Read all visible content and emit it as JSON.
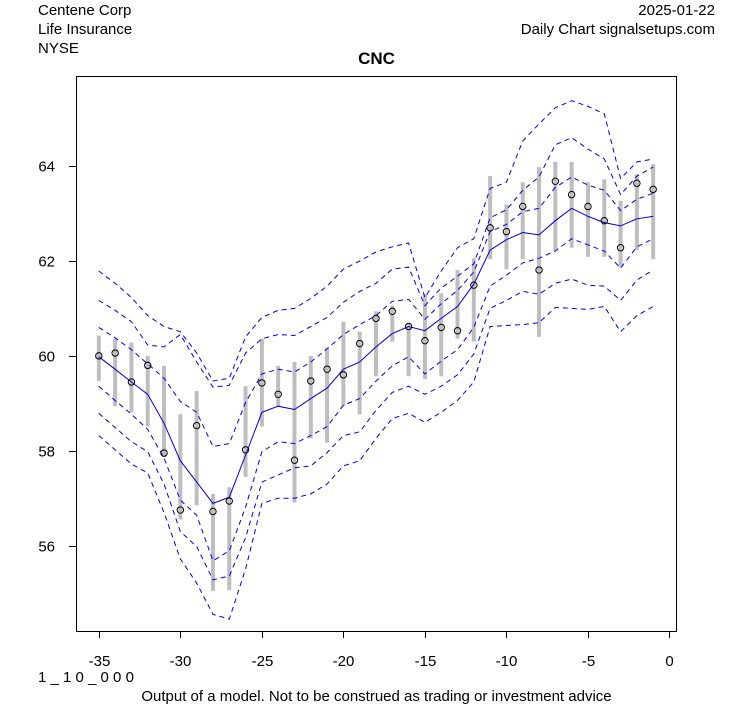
{
  "header": {
    "company": "Centene Corp",
    "industry": "Life Insurance",
    "exchange": "NYSE",
    "date": "2025-01-22",
    "source": "Daily Chart signalsetups.com"
  },
  "footer": {
    "code": "1 _ 1 0 _ 0 0 0",
    "disclaimer": "Output of a model. Not to be construed as trading or investment advice"
  },
  "colors": {
    "band": "#0000ee",
    "center": "#0000cc",
    "bar": "#bebebe",
    "point": "#000000"
  },
  "chart_data": {
    "type": "line",
    "title": "CNC",
    "xlabel": "",
    "ylabel": "",
    "xlim": [
      -36.4,
      0.4
    ],
    "ylim": [
      54.2,
      65.9
    ],
    "x_ticks": [
      -35,
      -30,
      -25,
      -20,
      -15,
      -10,
      -5,
      0
    ],
    "y_ticks": [
      56,
      58,
      60,
      62,
      64
    ],
    "x": [
      -35,
      -34,
      -33,
      -32,
      -31,
      -30,
      -29,
      -28,
      -27,
      -26,
      -25,
      -24,
      -23,
      -22,
      -21,
      -20,
      -19,
      -18,
      -17,
      -16,
      -15,
      -14,
      -13,
      -12,
      -11,
      -10,
      -9,
      -8,
      -7,
      -6,
      -5,
      -4,
      -3,
      -2,
      -1
    ],
    "close": [
      60.0,
      60.06,
      59.45,
      59.8,
      57.95,
      56.75,
      58.53,
      56.72,
      56.94,
      58.02,
      59.43,
      59.19,
      57.8,
      59.47,
      59.72,
      59.6,
      60.26,
      60.79,
      60.94,
      60.62,
      60.32,
      60.6,
      60.53,
      61.49,
      62.7,
      62.62,
      63.15,
      61.81,
      63.68,
      63.4,
      63.15,
      62.85,
      62.28,
      63.64,
      63.51
    ],
    "range_high": [
      60.43,
      60.36,
      60.28,
      60.0,
      59.79,
      58.77,
      59.26,
      57.09,
      57.23,
      59.36,
      60.36,
      59.79,
      59.87,
      60.0,
      60.17,
      60.72,
      60.51,
      60.94,
      61.06,
      60.68,
      61.3,
      61.32,
      61.81,
      62.06,
      63.79,
      63.19,
      63.66,
      63.98,
      64.09,
      64.09,
      63.66,
      63.72,
      63.27,
      63.83,
      64.04
    ],
    "range_low": [
      59.47,
      58.94,
      58.81,
      58.51,
      57.87,
      56.55,
      56.85,
      55.04,
      55.06,
      57.45,
      58.51,
      58.94,
      56.91,
      58.26,
      58.17,
      58.94,
      58.77,
      59.57,
      60.3,
      59.57,
      59.51,
      59.57,
      60.36,
      60.3,
      62.04,
      61.83,
      62.04,
      60.4,
      62.21,
      62.28,
      62.09,
      62.09,
      61.87,
      62.23,
      62.04
    ],
    "center": [
      59.98,
      59.72,
      59.45,
      59.19,
      58.58,
      57.79,
      57.34,
      56.89,
      57.02,
      57.91,
      58.81,
      58.94,
      58.87,
      59.1,
      59.32,
      59.72,
      59.87,
      60.19,
      60.47,
      60.62,
      60.53,
      60.79,
      61.04,
      61.51,
      62.23,
      62.45,
      62.6,
      62.55,
      62.85,
      63.11,
      62.94,
      62.81,
      62.74,
      62.89,
      62.94
    ],
    "bands": [
      {
        "name": "upper3",
        "values": [
          61.79,
          61.53,
          61.23,
          60.85,
          60.62,
          60.51,
          60.06,
          59.47,
          59.53,
          60.4,
          60.81,
          60.96,
          61.0,
          61.21,
          61.47,
          61.83,
          62.0,
          62.19,
          62.3,
          62.38,
          61.23,
          61.79,
          62.28,
          62.47,
          63.53,
          63.66,
          64.53,
          64.89,
          65.23,
          65.38,
          65.26,
          65.1,
          63.74,
          64.09,
          64.15
        ]
      },
      {
        "name": "upper2",
        "values": [
          61.17,
          60.96,
          60.72,
          60.23,
          60.19,
          60.45,
          59.87,
          59.34,
          59.38,
          60.06,
          60.36,
          60.45,
          60.43,
          60.62,
          60.81,
          61.13,
          61.36,
          61.53,
          61.83,
          61.87,
          61.06,
          61.43,
          61.68,
          61.94,
          62.91,
          63.08,
          63.49,
          63.77,
          64.45,
          64.6,
          64.36,
          64.15,
          63.4,
          63.79,
          63.98
        ]
      },
      {
        "name": "upper1",
        "values": [
          60.6,
          60.38,
          60.13,
          59.83,
          59.53,
          59.04,
          58.81,
          58.09,
          58.15,
          59.02,
          59.62,
          59.72,
          59.66,
          59.87,
          60.15,
          60.45,
          60.66,
          60.85,
          61.15,
          61.19,
          60.77,
          61.1,
          61.38,
          61.77,
          62.62,
          62.77,
          63.04,
          63.11,
          63.55,
          63.77,
          63.6,
          63.49,
          63.06,
          63.3,
          63.43
        ]
      },
      {
        "name": "lower1",
        "values": [
          59.36,
          59.06,
          58.77,
          58.45,
          57.85,
          56.96,
          56.64,
          55.68,
          55.89,
          56.81,
          57.98,
          58.19,
          58.15,
          58.32,
          58.51,
          58.96,
          59.1,
          59.47,
          59.79,
          59.98,
          59.62,
          59.89,
          60.13,
          60.6,
          61.47,
          61.7,
          61.96,
          62.06,
          62.21,
          62.47,
          62.34,
          62.21,
          61.85,
          62.3,
          62.47
        ]
      },
      {
        "name": "lower2",
        "values": [
          58.79,
          58.49,
          58.19,
          57.98,
          57.3,
          56.3,
          55.98,
          55.28,
          55.36,
          56.17,
          57.34,
          57.49,
          57.64,
          57.68,
          57.96,
          58.32,
          58.4,
          58.85,
          59.23,
          59.36,
          59.19,
          59.36,
          59.6,
          60.04,
          61.0,
          61.17,
          61.36,
          61.3,
          61.53,
          61.62,
          61.49,
          61.47,
          61.17,
          61.6,
          61.81
        ]
      },
      {
        "name": "lower3",
        "values": [
          58.32,
          58.02,
          57.72,
          57.53,
          56.7,
          55.72,
          55.21,
          54.55,
          54.45,
          55.51,
          56.89,
          57.0,
          57.0,
          57.09,
          57.3,
          57.68,
          57.79,
          58.26,
          58.68,
          58.79,
          58.6,
          58.81,
          59.06,
          59.45,
          60.62,
          60.64,
          60.66,
          60.7,
          61.02,
          61.0,
          60.98,
          61.04,
          60.51,
          60.85,
          61.04
        ]
      }
    ]
  }
}
